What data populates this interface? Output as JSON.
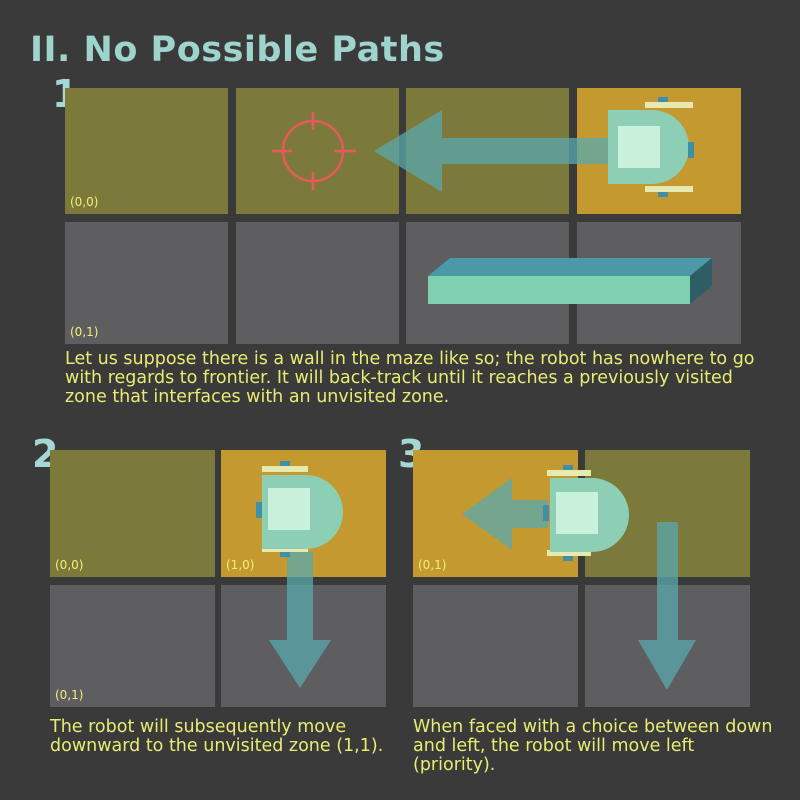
{
  "title": "II. No Possible Paths",
  "panels": [
    {
      "number": "1",
      "labels": {
        "cell_00": "(0,0)",
        "cell_01": "(0,1)"
      },
      "description": "Let us suppose there is a wall in the maze like so; the robot has nowhere to go with regards to frontier. It will back-track until it reaches a previously visited zone that interfaces with an unvisited zone."
    },
    {
      "number": "2",
      "labels": {
        "cell_00": "(0,0)",
        "cell_10": "(1,0)",
        "cell_01": "(0,1)"
      },
      "description": "The robot will subsequently move downward to the unvisited zone (1,1)."
    },
    {
      "number": "3",
      "labels": {
        "cell_01": "(0,1)"
      },
      "description": "When faced with a choice between down and left, the robot will move left (priority)."
    }
  ],
  "colors": {
    "background": "#3a3a3a",
    "visited": "#7c7a3a",
    "current": "#c49a30",
    "unvisited": "#5e5e60",
    "arrow": "#5aa8ad",
    "robot": "#8dcfb5",
    "target": "#e85a5a",
    "wall": "#7fcfb1",
    "text_accent": "#e8ec72"
  }
}
